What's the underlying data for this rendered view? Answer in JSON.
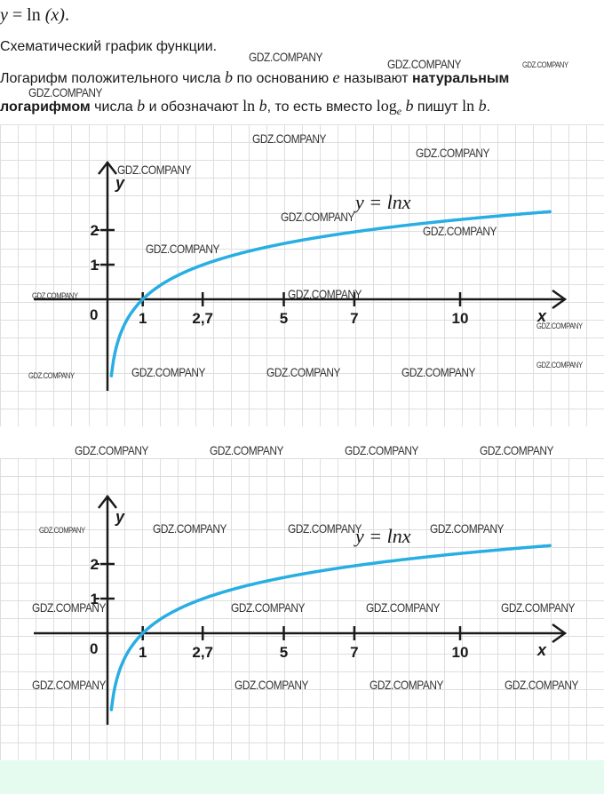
{
  "formula_top": {
    "lhs": "y",
    "eq": "=",
    "fn": "ln",
    "arg": "(x)",
    "end": "."
  },
  "subtitle": "Схематический график функции.",
  "paragraph": {
    "p1": "Логарифм положительного числа ",
    "b1": "b",
    "p2": " по основанию ",
    "e1": "e",
    "p3": " называют ",
    "bold1": "натуральным логарифмом",
    "p4": " числа ",
    "b2": "b",
    "p5": " и обозначают ",
    "ln1": "ln",
    "b3": "b",
    "p6": ", то есть вместо ",
    "log": "log",
    "sub_e": "e",
    "b4": "b",
    "p7": " пишут ",
    "ln2": "ln",
    "b5": "b",
    "p8": "."
  },
  "graph": {
    "curve_label": "y = lnx",
    "y_axis_label": "y",
    "x_axis_label": "x",
    "x_ticks": [
      {
        "label": "1",
        "value": 1
      },
      {
        "label": "2,7",
        "value": 2.7
      },
      {
        "label": "5",
        "value": 5
      },
      {
        "label": "7",
        "value": 7
      },
      {
        "label": "10",
        "value": 10
      }
    ],
    "origin_label": "0",
    "y_ticks": [
      {
        "label": "1",
        "value": 1
      },
      {
        "label": "2",
        "value": 2
      }
    ],
    "curve_color": "#29aee3"
  },
  "watermark": "GDZ.COMPANY"
}
